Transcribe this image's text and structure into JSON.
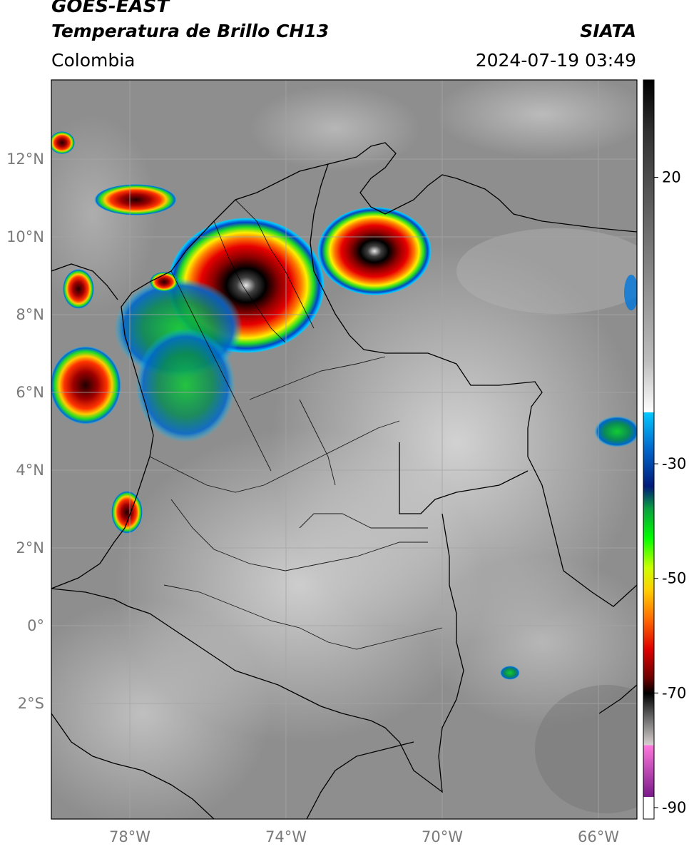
{
  "header": {
    "satellite": "GOES-EAST",
    "product": "Temperatura de Brillo CH13",
    "region": "Colombia",
    "organization": "SIATA",
    "timestamp": "2024-07-19 03:49"
  },
  "map": {
    "lat_ticks": [
      "12°N",
      "10°N",
      "8°N",
      "6°N",
      "4°N",
      "2°N",
      "0°",
      "2°S"
    ],
    "lon_ticks": [
      "78°W",
      "74°W",
      "70°W",
      "66°W"
    ],
    "lat_values": [
      12,
      10,
      8,
      6,
      4,
      2,
      0,
      -2
    ],
    "lon_values": [
      -78,
      -74,
      -70,
      -66
    ],
    "extent": {
      "lon": [
        -80,
        -65
      ],
      "lat": [
        -4.9,
        14
      ]
    },
    "gridlines": true
  },
  "colorbar": {
    "labels": [
      "20",
      "-30",
      "-50",
      "-70",
      "-90"
    ],
    "values": [
      20,
      -30,
      -50,
      -70,
      -90
    ],
    "range": [
      -92,
      37
    ]
  },
  "storms": [
    {
      "name": "caribbean-maracaibo-cell",
      "lon": -71.9,
      "lat": 9.8,
      "min_temp": -80
    },
    {
      "name": "magdalena-cell",
      "lon": -75.1,
      "lat": 8.3,
      "min_temp": -85
    },
    {
      "name": "pacific-cell",
      "lon": -78.9,
      "lat": 6.2,
      "min_temp": -75
    },
    {
      "name": "tumaco-cell",
      "lon": -78.0,
      "lat": 3.0,
      "min_temp": -70
    }
  ],
  "colors": {
    "cloud_cold": "#000000",
    "deep_red": "#b00000",
    "orange": "#ff7700",
    "yellow": "#ffee00",
    "green": "#22cc22",
    "blue": "#0033cc",
    "cyan": "#00ccff"
  }
}
